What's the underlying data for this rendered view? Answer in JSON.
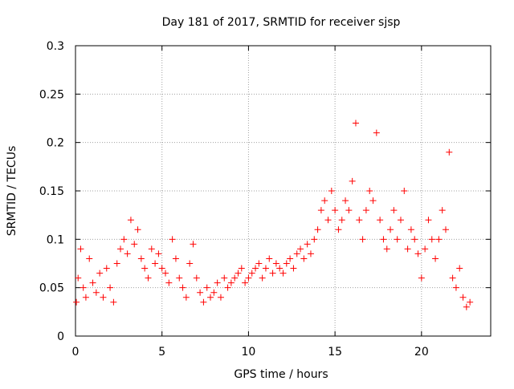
{
  "chart_data": {
    "type": "scatter",
    "title": "Day 181 of 2017, SRMTID for receiver sjsp",
    "xlabel": "GPS time / hours",
    "ylabel": "SRMTID / TECUs",
    "xlim": [
      0,
      24
    ],
    "ylim": [
      0,
      0.3
    ],
    "x_ticks": [
      "0",
      "5",
      "10",
      "15",
      "20"
    ],
    "y_ticks": [
      "0",
      "0.05",
      "0.1",
      "0.15",
      "0.2",
      "0.25",
      "0.3"
    ],
    "grid": true,
    "marker": "+",
    "color": "#ff0000",
    "series": [
      {
        "points": [
          [
            0.05,
            0.035
          ],
          [
            0.15,
            0.06
          ],
          [
            0.3,
            0.09
          ],
          [
            0.45,
            0.05
          ],
          [
            0.6,
            0.04
          ],
          [
            0.8,
            0.08
          ],
          [
            1.0,
            0.055
          ],
          [
            1.2,
            0.045
          ],
          [
            1.4,
            0.065
          ],
          [
            1.6,
            0.04
          ],
          [
            1.8,
            0.07
          ],
          [
            2.0,
            0.05
          ],
          [
            2.2,
            0.035
          ],
          [
            2.4,
            0.075
          ],
          [
            2.6,
            0.09
          ],
          [
            2.8,
            0.1
          ],
          [
            3.0,
            0.085
          ],
          [
            3.2,
            0.12
          ],
          [
            3.4,
            0.095
          ],
          [
            3.6,
            0.11
          ],
          [
            3.8,
            0.08
          ],
          [
            4.0,
            0.07
          ],
          [
            4.2,
            0.06
          ],
          [
            4.4,
            0.09
          ],
          [
            4.6,
            0.075
          ],
          [
            4.8,
            0.085
          ],
          [
            5.0,
            0.07
          ],
          [
            5.2,
            0.065
          ],
          [
            5.4,
            0.055
          ],
          [
            5.6,
            0.1
          ],
          [
            5.8,
            0.08
          ],
          [
            6.0,
            0.06
          ],
          [
            6.2,
            0.05
          ],
          [
            6.4,
            0.04
          ],
          [
            6.6,
            0.075
          ],
          [
            6.8,
            0.095
          ],
          [
            7.0,
            0.06
          ],
          [
            7.2,
            0.045
          ],
          [
            7.4,
            0.035
          ],
          [
            7.6,
            0.05
          ],
          [
            7.8,
            0.04
          ],
          [
            8.0,
            0.045
          ],
          [
            8.2,
            0.055
          ],
          [
            8.4,
            0.04
          ],
          [
            8.6,
            0.06
          ],
          [
            8.8,
            0.05
          ],
          [
            9.0,
            0.055
          ],
          [
            9.2,
            0.06
          ],
          [
            9.4,
            0.065
          ],
          [
            9.6,
            0.07
          ],
          [
            9.8,
            0.055
          ],
          [
            10.0,
            0.06
          ],
          [
            10.2,
            0.065
          ],
          [
            10.4,
            0.07
          ],
          [
            10.6,
            0.075
          ],
          [
            10.8,
            0.06
          ],
          [
            11.0,
            0.07
          ],
          [
            11.2,
            0.08
          ],
          [
            11.4,
            0.065
          ],
          [
            11.6,
            0.075
          ],
          [
            11.8,
            0.07
          ],
          [
            12.0,
            0.065
          ],
          [
            12.2,
            0.075
          ],
          [
            12.4,
            0.08
          ],
          [
            12.6,
            0.07
          ],
          [
            12.8,
            0.085
          ],
          [
            13.0,
            0.09
          ],
          [
            13.2,
            0.08
          ],
          [
            13.4,
            0.095
          ],
          [
            13.6,
            0.085
          ],
          [
            13.8,
            0.1
          ],
          [
            14.0,
            0.11
          ],
          [
            14.2,
            0.13
          ],
          [
            14.4,
            0.14
          ],
          [
            14.6,
            0.12
          ],
          [
            14.8,
            0.15
          ],
          [
            15.0,
            0.13
          ],
          [
            15.2,
            0.11
          ],
          [
            15.4,
            0.12
          ],
          [
            15.6,
            0.14
          ],
          [
            15.8,
            0.13
          ],
          [
            16.0,
            0.16
          ],
          [
            16.2,
            0.22
          ],
          [
            16.4,
            0.12
          ],
          [
            16.6,
            0.1
          ],
          [
            16.8,
            0.13
          ],
          [
            17.0,
            0.15
          ],
          [
            17.2,
            0.14
          ],
          [
            17.4,
            0.21
          ],
          [
            17.6,
            0.12
          ],
          [
            17.8,
            0.1
          ],
          [
            18.0,
            0.09
          ],
          [
            18.2,
            0.11
          ],
          [
            18.4,
            0.13
          ],
          [
            18.6,
            0.1
          ],
          [
            18.8,
            0.12
          ],
          [
            19.0,
            0.15
          ],
          [
            19.2,
            0.09
          ],
          [
            19.4,
            0.11
          ],
          [
            19.6,
            0.1
          ],
          [
            19.8,
            0.085
          ],
          [
            20.0,
            0.06
          ],
          [
            20.2,
            0.09
          ],
          [
            20.4,
            0.12
          ],
          [
            20.6,
            0.1
          ],
          [
            20.8,
            0.08
          ],
          [
            21.0,
            0.1
          ],
          [
            21.2,
            0.13
          ],
          [
            21.4,
            0.11
          ],
          [
            21.6,
            0.19
          ],
          [
            21.8,
            0.06
          ],
          [
            22.0,
            0.05
          ],
          [
            22.2,
            0.07
          ],
          [
            22.4,
            0.04
          ],
          [
            22.6,
            0.03
          ],
          [
            22.8,
            0.035
          ]
        ]
      }
    ]
  }
}
